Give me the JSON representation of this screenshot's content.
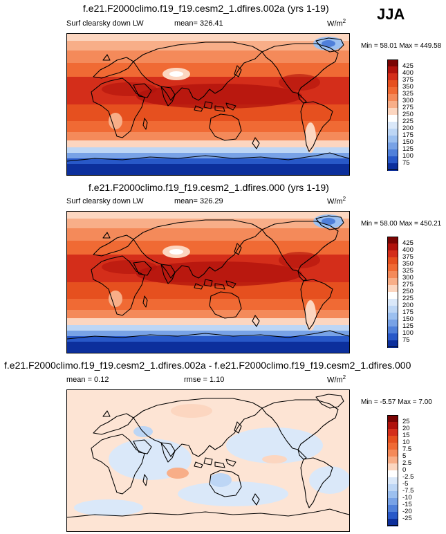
{
  "season": "JJA",
  "panels": [
    {
      "title": "f.e21.F2000climo.f19_f19.cesm2_1.dfires.002a (yrs 1-19)",
      "left_label": "Surf clearsky down LW",
      "mid_label": "mean= 326.41",
      "units_base": "W/m",
      "units_exp": "2",
      "minmax": "Min = 58.01 Max = 449.58",
      "colorbar": {
        "labels": [
          "425",
          "400",
          "375",
          "350",
          "325",
          "300",
          "275",
          "250",
          "225",
          "200",
          "175",
          "150",
          "125",
          "100",
          "75"
        ],
        "colors": [
          "#7a0403",
          "#b0120c",
          "#d42e1a",
          "#e6501f",
          "#f06a34",
          "#f48a5a",
          "#f8ae88",
          "#fcd6c0",
          "#ffffff",
          "#dae8f9",
          "#bdd6f5",
          "#9cc0f0",
          "#78a2e6",
          "#5080da",
          "#2858c8",
          "#0c2f9c"
        ]
      }
    },
    {
      "title": "f.e21.F2000climo.f19_f19.cesm2_1.dfires.000 (yrs 1-19)",
      "left_label": "Surf clearsky down LW",
      "mid_label": "mean= 326.29",
      "units_base": "W/m",
      "units_exp": "2",
      "minmax": "Min = 58.00 Max = 450.21",
      "colorbar": {
        "labels": [
          "425",
          "400",
          "375",
          "350",
          "325",
          "300",
          "275",
          "250",
          "225",
          "200",
          "175",
          "150",
          "125",
          "100",
          "75"
        ],
        "colors": [
          "#7a0403",
          "#b0120c",
          "#d42e1a",
          "#e6501f",
          "#f06a34",
          "#f48a5a",
          "#f8ae88",
          "#fcd6c0",
          "#ffffff",
          "#dae8f9",
          "#bdd6f5",
          "#9cc0f0",
          "#78a2e6",
          "#5080da",
          "#2858c8",
          "#0c2f9c"
        ]
      }
    },
    {
      "title": "f.e21.F2000climo.f19_f19.cesm2_1.dfires.002a - f.e21.F2000climo.f19_f19.cesm2_1.dfires.000",
      "left_label": "mean = 0.12",
      "mid_label": "rmse = 1.10",
      "units_base": "W/m",
      "units_exp": "2",
      "minmax": "Min = -5.57 Max = 7.00",
      "colorbar": {
        "labels": [
          "25",
          "20",
          "15",
          "10",
          "7.5",
          "5",
          "2.5",
          "0",
          "-2.5",
          "-5",
          "-7.5",
          "-10",
          "-15",
          "-20",
          "-25"
        ],
        "colors": [
          "#7a0403",
          "#b0120c",
          "#d42e1a",
          "#e6501f",
          "#f06a34",
          "#f48a5a",
          "#f8ae88",
          "#fcd6c0",
          "#ffffff",
          "#dae8f9",
          "#bdd6f5",
          "#9cc0f0",
          "#78a2e6",
          "#5080da",
          "#2858c8",
          "#0c2f9c"
        ]
      }
    }
  ],
  "chart_data": [
    {
      "type": "heatmap",
      "title": "f.e21.F2000climo.f19_f19.cesm2_1.dfires.002a (yrs 1-19)",
      "variable": "Surf clearsky down LW",
      "units": "W/m2",
      "season": "JJA",
      "mean": 326.41,
      "min": 58.01,
      "max": 449.58,
      "contour_levels": [
        75,
        100,
        125,
        150,
        175,
        200,
        225,
        250,
        275,
        300,
        325,
        350,
        375,
        400,
        425
      ]
    },
    {
      "type": "heatmap",
      "title": "f.e21.F2000climo.f19_f19.cesm2_1.dfires.000 (yrs 1-19)",
      "variable": "Surf clearsky down LW",
      "units": "W/m2",
      "season": "JJA",
      "mean": 326.29,
      "min": 58.0,
      "max": 450.21,
      "contour_levels": [
        75,
        100,
        125,
        150,
        175,
        200,
        225,
        250,
        275,
        300,
        325,
        350,
        375,
        400,
        425
      ]
    },
    {
      "type": "heatmap",
      "title": "f.e21.F2000climo.f19_f19.cesm2_1.dfires.002a - f.e21.F2000climo.f19_f19.cesm2_1.dfires.000",
      "variable": "difference",
      "units": "W/m2",
      "mean": 0.12,
      "rmse": 1.1,
      "min": -5.57,
      "max": 7.0,
      "contour_levels": [
        -25,
        -20,
        -15,
        -10,
        -7.5,
        -5,
        -2.5,
        0,
        2.5,
        5,
        7.5,
        10,
        15,
        20,
        25
      ]
    }
  ]
}
